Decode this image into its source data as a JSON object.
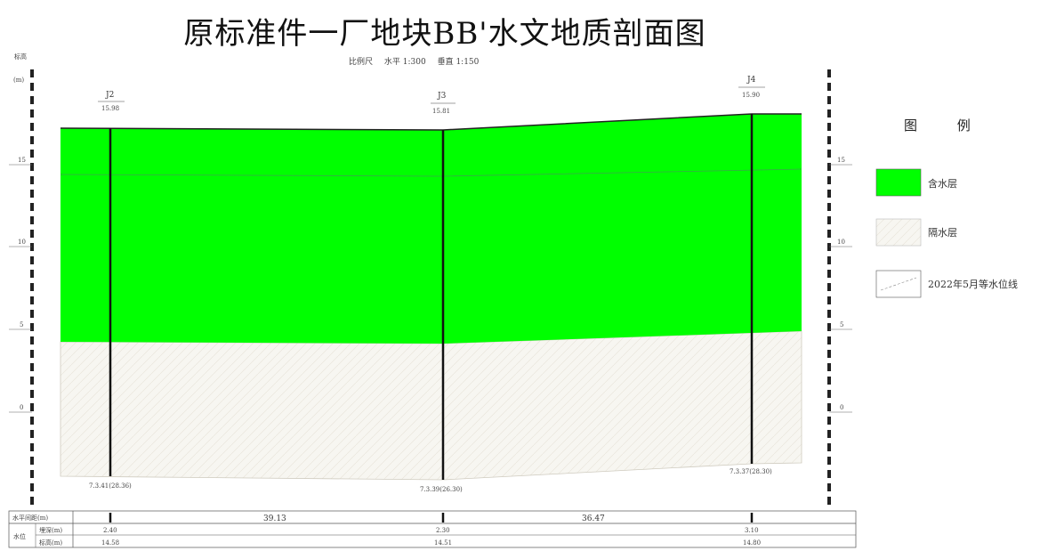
{
  "title": "原标准件一厂地块BB'水文地质剖面图",
  "scale_line": {
    "label": "比例尺",
    "horizontal": "水平 1:300",
    "vertical": "垂直 1:150"
  },
  "axis": {
    "label_top": "标高",
    "label_unit": "(m)",
    "ticks": [
      "15",
      "10",
      "5",
      "0"
    ]
  },
  "boreholes": [
    {
      "id": "J2",
      "elev_label": "15.98",
      "bottom_label": "7.3.41(28.36)"
    },
    {
      "id": "J3",
      "elev_label": "15.81",
      "bottom_label": "7.3.39(26.30)"
    },
    {
      "id": "J4",
      "elev_label": "15.90",
      "bottom_label": "7.3.37(28.30)"
    }
  ],
  "legend": {
    "title": "图  例",
    "items": [
      {
        "label": "含水层",
        "color": "#00ff00",
        "kind": "aquifer"
      },
      {
        "label": "隔水层",
        "color": "#f7f6f1",
        "kind": "aquitard"
      },
      {
        "label": "2022年5月等水位线",
        "kind": "water-line"
      }
    ]
  },
  "bottom_table": {
    "row1_label": "水平间距(m)",
    "row1_values": [
      "39.13",
      "36.47"
    ],
    "group_label": "水位",
    "row2_label": "埋深(m)",
    "row3_label": "标高(m)",
    "depth_values": [
      "2.40",
      "2.30",
      "3.10"
    ],
    "elev_values": [
      "14.58",
      "14.51",
      "14.80"
    ]
  }
}
